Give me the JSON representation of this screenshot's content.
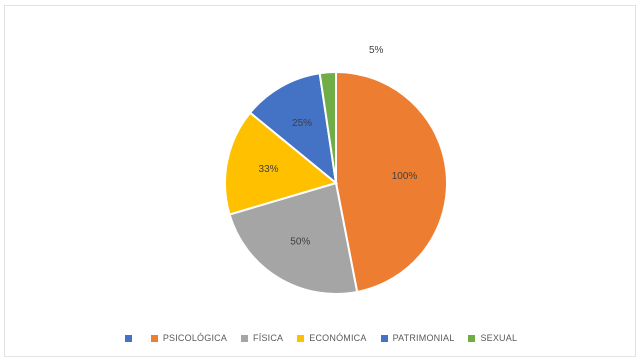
{
  "chart_data": {
    "type": "pie",
    "title": "",
    "categories": [
      "",
      "PSICOLÓGICA",
      "FÍSICA",
      "ECONÓMICA",
      "PATRIMONIAL",
      "SEXUAL"
    ],
    "values": [
      0,
      100,
      50,
      33,
      25,
      5
    ],
    "data_labels": [
      "",
      "100%",
      "50%",
      "33%",
      "25%",
      "5%"
    ],
    "colors": [
      "#4472C4",
      "#ED7D31",
      "#A5A5A5",
      "#FFC000",
      "#4472C4",
      "#70AD47"
    ],
    "legend_position": "bottom",
    "start_angle_deg": 0,
    "direction": "clockwise"
  }
}
